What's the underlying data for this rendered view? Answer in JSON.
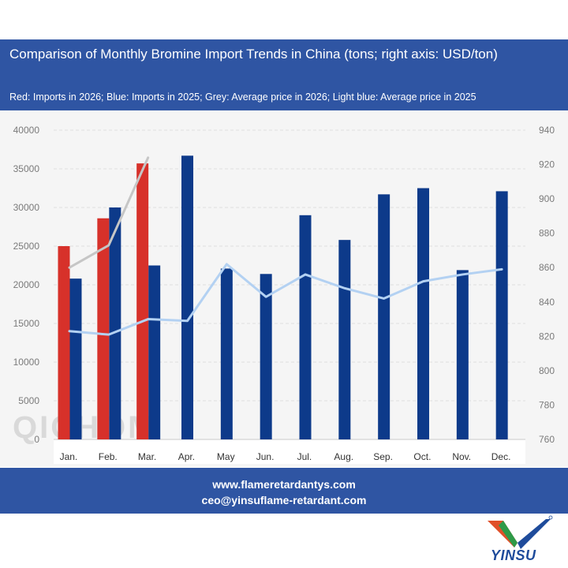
{
  "header": {
    "title": "Comparison of Monthly Bromine Import Trends in China (tons; right axis: USD/ton)",
    "subtitle": "Red: Imports in 2026; Blue: Imports in 2025; Grey: Average price in 2026; Light blue: Average price in 2025"
  },
  "footer": {
    "website": "www.flameretardantys.com",
    "email": "ceo@yinsuflame-retardant.com"
  },
  "logo": {
    "text": "YINSU"
  },
  "chart_data": {
    "type": "bar",
    "categories": [
      "Jan.",
      "Feb.",
      "Mar.",
      "Apr.",
      "May",
      "Jun.",
      "Jul.",
      "Aug.",
      "Sep.",
      "Oct.",
      "Nov.",
      "Dec."
    ],
    "series": [
      {
        "values": [
          25000,
          28600,
          35700,
          null,
          null,
          null,
          null,
          null,
          null,
          null,
          null,
          null
        ],
        "color": "#d7312a",
        "kind": "bar",
        "axis": "left"
      },
      {
        "values": [
          20800,
          30000,
          22500,
          36700,
          22100,
          21400,
          29000,
          25800,
          31700,
          32500,
          21900,
          32100
        ],
        "color": "#0d3a8a",
        "kind": "bar",
        "axis": "left"
      },
      {
        "values": [
          860,
          873,
          924,
          null,
          null,
          null,
          null,
          null,
          null,
          null,
          null,
          null
        ],
        "color": "#c6c6c6",
        "kind": "line",
        "axis": "right"
      },
      {
        "values": [
          823,
          821,
          830,
          829,
          862,
          843,
          856,
          848,
          842,
          852,
          856,
          859
        ],
        "color": "#b3d1f2",
        "kind": "line",
        "axis": "right"
      }
    ],
    "ylim": [
      0,
      40000
    ],
    "yticks": [
      0,
      5000,
      10000,
      15000,
      20000,
      25000,
      30000,
      35000,
      40000
    ],
    "y2lim": [
      760,
      940
    ],
    "y2ticks": [
      760,
      780,
      800,
      820,
      840,
      860,
      880,
      900,
      920,
      940
    ],
    "grid": true,
    "watermark": "QICHOM"
  }
}
